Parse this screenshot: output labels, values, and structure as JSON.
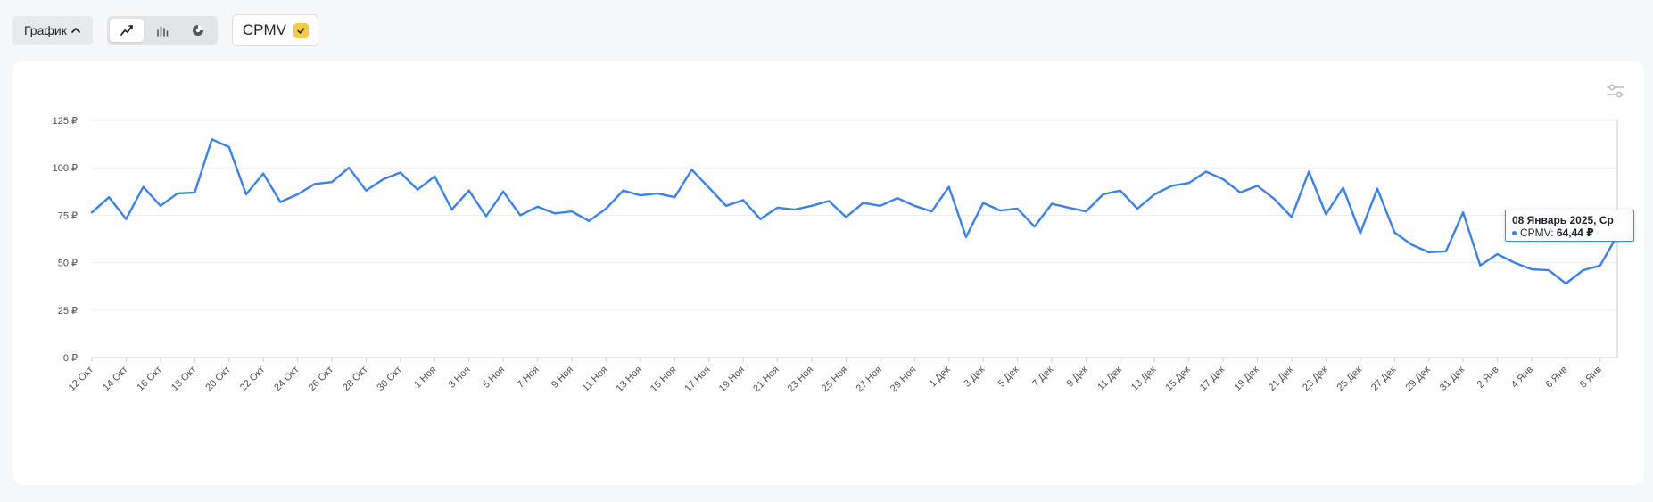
{
  "toolbar": {
    "view_button": "График",
    "chart_types": [
      {
        "name": "line",
        "icon": "line-chart-icon",
        "active": true
      },
      {
        "name": "bar",
        "icon": "bar-chart-icon",
        "active": false
      },
      {
        "name": "pie",
        "icon": "pie-chart-icon",
        "active": false
      }
    ],
    "metric_chip": "CPMV",
    "accent_color": "#f7c948"
  },
  "tooltip": {
    "title": "08 Январь 2025, Ср",
    "series": "CPMV",
    "value": "64,44 ₽"
  },
  "chart_data": {
    "type": "line",
    "y_ticks": [
      "0 ₽",
      "25 ₽",
      "50 ₽",
      "75 ₽",
      "100 ₽",
      "125 ₽"
    ],
    "ylim": [
      0,
      125
    ],
    "x_labels": [
      "12 Окт",
      "14 Окт",
      "16 Окт",
      "18 Окт",
      "20 Окт",
      "22 Окт",
      "24 Окт",
      "26 Окт",
      "28 Окт",
      "30 Окт",
      "1 Ноя",
      "3 Ноя",
      "5 Ноя",
      "7 Ноя",
      "9 Ноя",
      "11 Ноя",
      "13 Ноя",
      "15 Ноя",
      "17 Ноя",
      "19 Ноя",
      "21 Ноя",
      "23 Ноя",
      "25 Ноя",
      "27 Ноя",
      "29 Ноя",
      "1 Дек",
      "3 Дек",
      "5 Дек",
      "7 Дек",
      "9 Дек",
      "11 Дек",
      "13 Дек",
      "15 Дек",
      "17 Дек",
      "19 Дек",
      "21 Дек",
      "23 Дек",
      "25 Дек",
      "27 Дек",
      "29 Дек",
      "31 Дек",
      "2 Янв",
      "4 Янв",
      "6 Янв",
      "8 Янв"
    ],
    "grid": true,
    "series": [
      {
        "name": "CPMV",
        "color": "#3c82e6",
        "values": [
          76.5,
          84.5,
          73,
          90,
          80,
          86.5,
          87,
          115,
          111,
          86,
          97,
          82,
          86,
          91.5,
          92.5,
          100,
          88,
          94,
          97.5,
          88.5,
          95.5,
          78,
          88,
          74.5,
          87.5,
          75,
          79.5,
          76,
          77,
          72,
          78.5,
          88,
          85.5,
          86.5,
          84.5,
          99,
          89.5,
          80,
          83,
          73,
          79,
          78,
          80,
          82.5,
          74,
          81.5,
          80,
          84,
          80,
          77,
          90,
          63.5,
          81.5,
          77.5,
          78.5,
          69,
          81,
          79,
          77,
          86,
          88,
          78.5,
          86,
          90.5,
          92,
          98,
          94,
          87,
          90.5,
          83.5,
          74,
          98,
          75.5,
          89.5,
          65.5,
          89,
          66,
          59.5,
          55.5,
          56,
          76.5,
          48.5,
          54.5,
          50,
          46.5,
          46,
          39,
          46,
          48.5,
          64.44
        ]
      }
    ]
  }
}
